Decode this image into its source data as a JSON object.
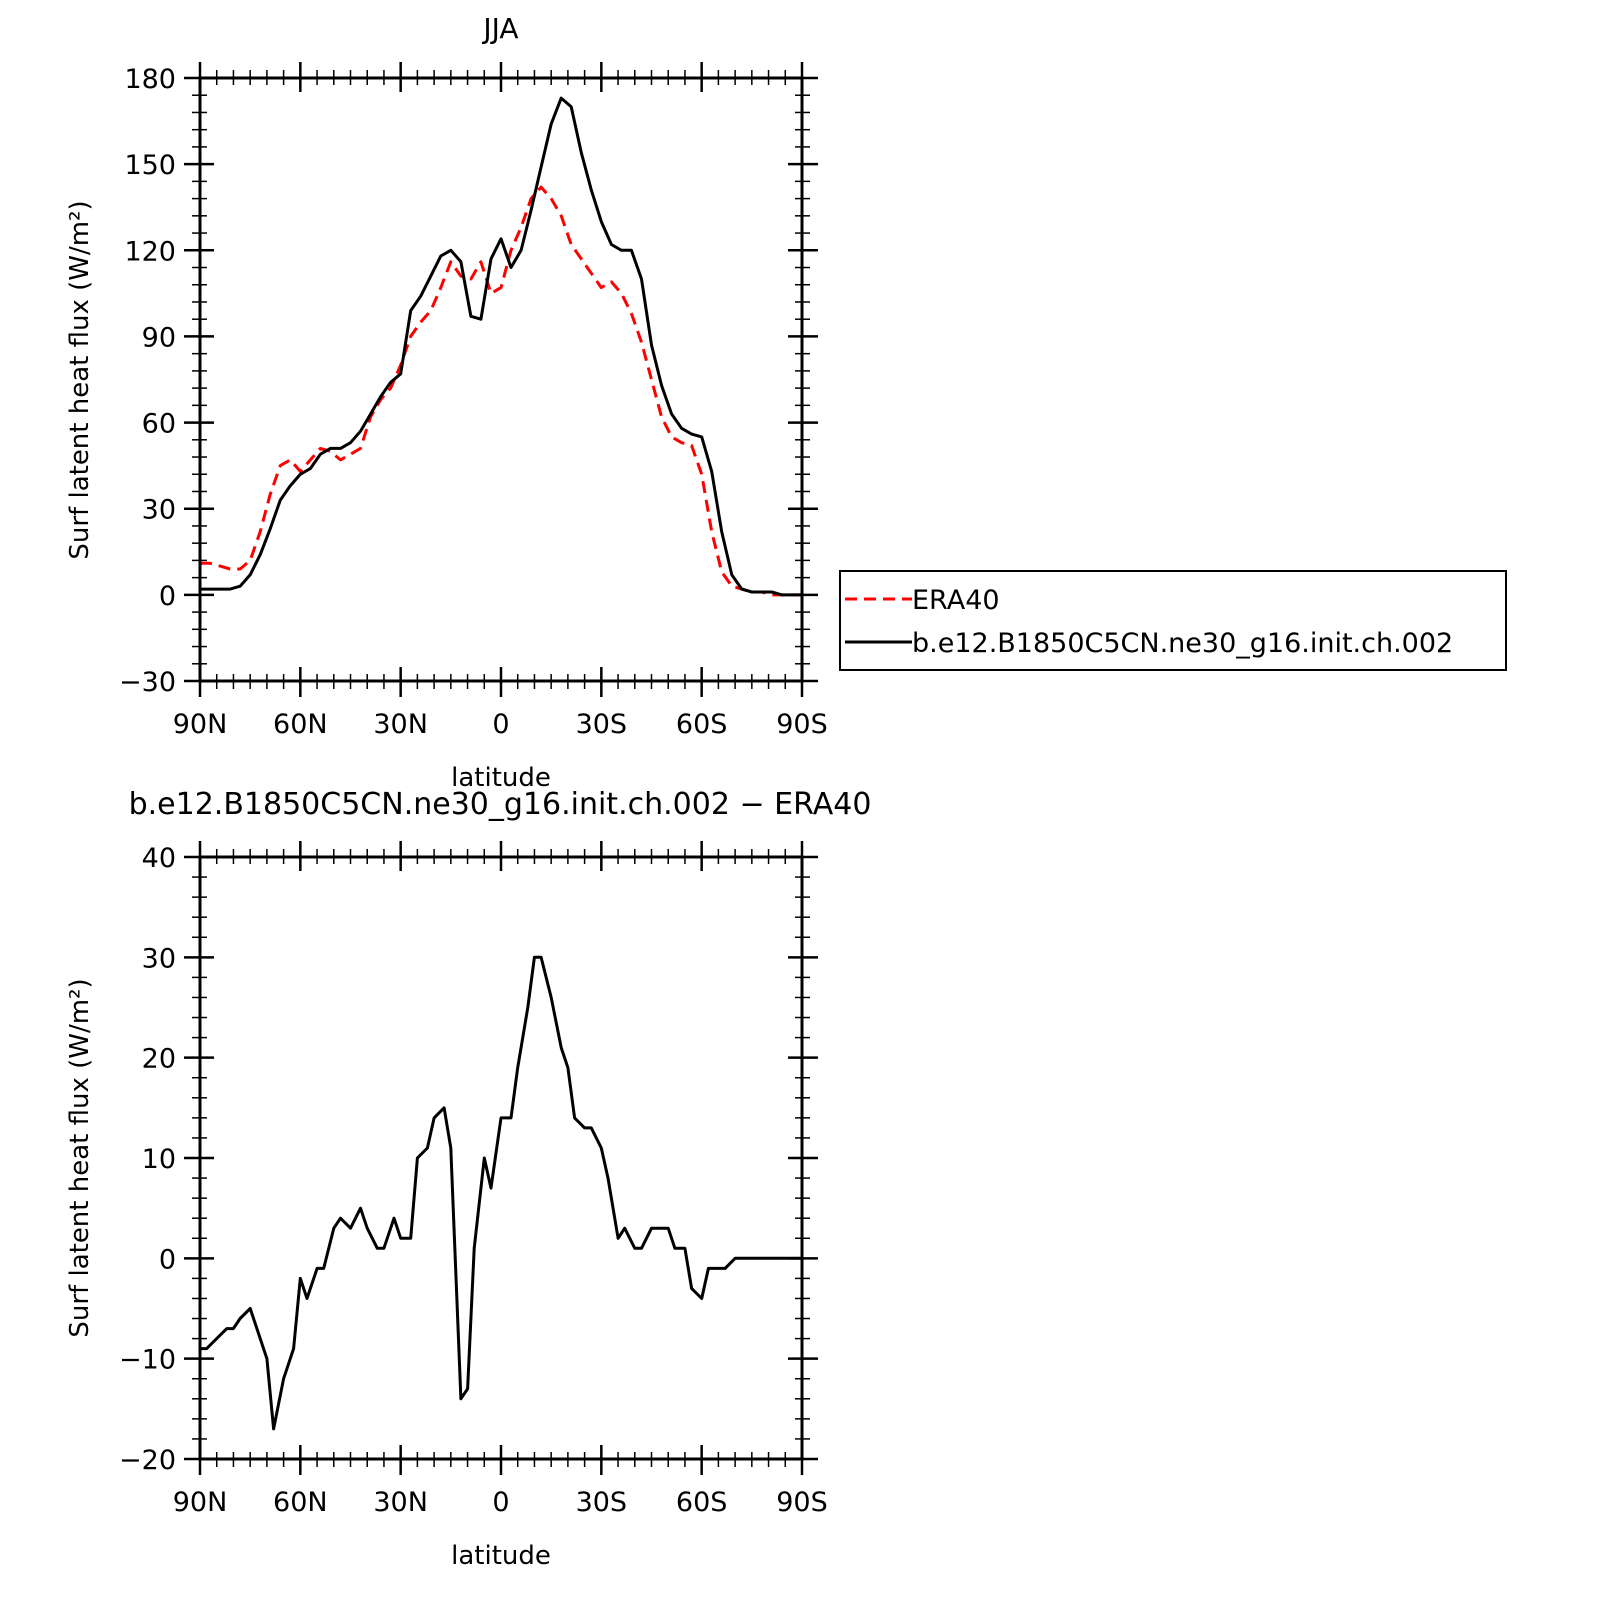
{
  "chart_data": [
    {
      "type": "line",
      "title": "JJA",
      "xlabel": "latitude",
      "ylabel": "Surf latent heat flux (W/m²)",
      "xlim": [
        90,
        -90
      ],
      "ylim": [
        -30,
        180
      ],
      "x_ticks": [
        {
          "value": 90,
          "label": "90N"
        },
        {
          "value": 60,
          "label": "60N"
        },
        {
          "value": 30,
          "label": "30N"
        },
        {
          "value": 0,
          "label": "0"
        },
        {
          "value": -30,
          "label": "30S"
        },
        {
          "value": -60,
          "label": "60S"
        },
        {
          "value": -90,
          "label": "90S"
        }
      ],
      "y_ticks": [
        {
          "value": 180,
          "label": "180"
        },
        {
          "value": 150,
          "label": "150"
        },
        {
          "value": 120,
          "label": "120"
        },
        {
          "value": 90,
          "label": "90"
        },
        {
          "value": 60,
          "label": "60"
        },
        {
          "value": 30,
          "label": "30"
        },
        {
          "value": 0,
          "label": "0"
        },
        {
          "value": -30,
          "label": "−30"
        }
      ],
      "legend": {
        "placement": "right"
      },
      "series": [
        {
          "name": "ERA40",
          "color": "#ff0000",
          "style": "dashed",
          "x": [
            90,
            87,
            84,
            81,
            78,
            75,
            72,
            69,
            66,
            63,
            60,
            57,
            54,
            51,
            48,
            45,
            42,
            39,
            36,
            33,
            30,
            27,
            24,
            21,
            18,
            15,
            12,
            9,
            6,
            3,
            0,
            -3,
            -6,
            -9,
            -12,
            -15,
            -18,
            -21,
            -24,
            -27,
            -30,
            -33,
            -36,
            -39,
            -42,
            -45,
            -48,
            -51,
            -54,
            -57,
            -60,
            -63,
            -66,
            -69,
            -72,
            -75,
            -78,
            -81,
            -84,
            -87,
            -90
          ],
          "y": [
            11,
            11,
            10,
            9,
            9,
            12,
            22,
            35,
            45,
            47,
            43,
            47,
            51,
            50,
            47,
            49,
            51,
            62,
            68,
            72,
            80,
            90,
            95,
            99,
            107,
            116,
            111,
            110,
            116,
            105,
            107,
            120,
            128,
            138,
            142,
            138,
            132,
            122,
            117,
            112,
            107,
            109,
            105,
            98,
            88,
            75,
            62,
            55,
            53,
            52,
            42,
            22,
            8,
            3,
            2,
            1,
            1,
            0,
            0,
            0,
            0
          ]
        },
        {
          "name": "b.e12.B1850C5CN.ne30_g16.init.ch.002",
          "color": "#000000",
          "style": "solid",
          "x": [
            90,
            87,
            84,
            81,
            78,
            75,
            72,
            69,
            66,
            63,
            60,
            57,
            54,
            51,
            48,
            45,
            42,
            39,
            36,
            33,
            30,
            27,
            24,
            21,
            18,
            15,
            12,
            9,
            6,
            3,
            0,
            -3,
            -6,
            -9,
            -12,
            -15,
            -18,
            -21,
            -24,
            -27,
            -30,
            -33,
            -36,
            -39,
            -42,
            -45,
            -48,
            -51,
            -54,
            -57,
            -60,
            -63,
            -66,
            -69,
            -72,
            -75,
            -78,
            -81,
            -84,
            -87,
            -90
          ],
          "y": [
            2,
            2,
            2,
            2,
            3,
            7,
            14,
            23,
            33,
            38,
            42,
            44,
            49,
            51,
            51,
            53,
            57,
            63,
            69,
            74,
            77,
            99,
            104,
            111,
            118,
            120,
            116,
            97,
            96,
            117,
            124,
            114,
            120,
            134,
            149,
            164,
            173,
            170,
            154,
            141,
            130,
            122,
            120,
            120,
            110,
            87,
            73,
            63,
            58,
            56,
            55,
            43,
            22,
            7,
            2,
            1,
            1,
            1,
            0,
            0,
            0
          ]
        }
      ]
    },
    {
      "type": "line",
      "title": "b.e12.B1850C5CN.ne30_g16.init.ch.002 − ERA40",
      "xlabel": "latitude",
      "ylabel": "Surf latent heat flux (W/m²)",
      "xlim": [
        90,
        -90
      ],
      "ylim": [
        -20,
        40
      ],
      "x_ticks": [
        {
          "value": 90,
          "label": "90N"
        },
        {
          "value": 60,
          "label": "60N"
        },
        {
          "value": 30,
          "label": "30N"
        },
        {
          "value": 0,
          "label": "0"
        },
        {
          "value": -30,
          "label": "30S"
        },
        {
          "value": -60,
          "label": "60S"
        },
        {
          "value": -90,
          "label": "90S"
        }
      ],
      "y_ticks": [
        {
          "value": 40,
          "label": "40"
        },
        {
          "value": 30,
          "label": "30"
        },
        {
          "value": 20,
          "label": "20"
        },
        {
          "value": 10,
          "label": "10"
        },
        {
          "value": 0,
          "label": "0"
        },
        {
          "value": -10,
          "label": "−10"
        },
        {
          "value": -20,
          "label": "−20"
        }
      ],
      "series": [
        {
          "color": "#000000",
          "style": "solid",
          "x": [
            90,
            88,
            85,
            82,
            80,
            78,
            75,
            70,
            68,
            65,
            62,
            60,
            58,
            55,
            53,
            50,
            48,
            45,
            42,
            40,
            37,
            35,
            32,
            30,
            27,
            25,
            22,
            20,
            17,
            15,
            12,
            10,
            8,
            5,
            3,
            0,
            -3,
            -5,
            -8,
            -10,
            -12,
            -15,
            -18,
            -20,
            -22,
            -25,
            -27,
            -30,
            -32,
            -35,
            -37,
            -40,
            -42,
            -45,
            -47,
            -50,
            -52,
            -55,
            -57,
            -60,
            -62,
            -65,
            -67,
            -70,
            -72,
            -75,
            -77,
            -80,
            -82,
            -85,
            -87,
            -90
          ],
          "y": [
            -9,
            -9,
            -8,
            -7,
            -7,
            -6,
            -5,
            -10,
            -17,
            -12,
            -9,
            -2,
            -4,
            -1,
            -1,
            3,
            4,
            3,
            5,
            3,
            1,
            1,
            4,
            2,
            2,
            10,
            11,
            14,
            15,
            11,
            -14,
            -13,
            1,
            10,
            7,
            14,
            14,
            19,
            25,
            30,
            30,
            26,
            21,
            19,
            14,
            13,
            13,
            11,
            8,
            2,
            3,
            1,
            1,
            3,
            3,
            3,
            1,
            1,
            -3,
            -4,
            -1,
            -1,
            -1,
            0,
            0,
            0,
            0,
            0,
            0,
            0,
            0,
            0
          ]
        }
      ]
    }
  ]
}
